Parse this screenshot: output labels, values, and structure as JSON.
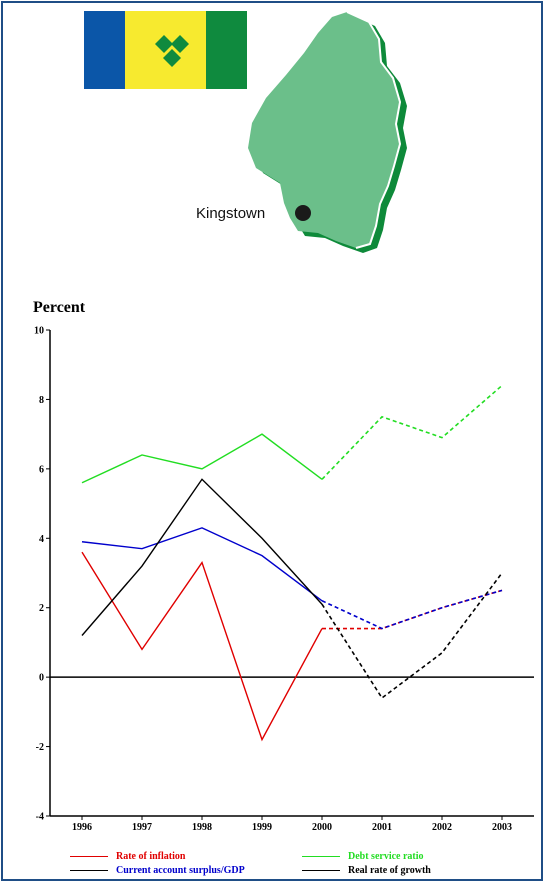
{
  "map": {
    "city_label": "Kingstown"
  },
  "colors": {
    "flag_blue": "#0b56a8",
    "flag_yellow": "#f7ea2f",
    "flag_green": "#0f8a3e",
    "map_fill": "#6bbf8a",
    "map_shadow": "#0e8a3a",
    "frame": "#1f4e86"
  },
  "chart_data": {
    "type": "line",
    "title": "Percent",
    "xlabel": "",
    "ylabel": "Percent",
    "categories": [
      "1996",
      "1997",
      "1998",
      "1999",
      "2000",
      "2001",
      "2002",
      "2003"
    ],
    "ylim": [
      -4,
      10
    ],
    "yticks": [
      -4,
      -2,
      0,
      2,
      4,
      6,
      8,
      10
    ],
    "grid": false,
    "legend": "bottom",
    "solid_until": "2000",
    "dashed_from": "2000",
    "series": [
      {
        "name": "Rate of inflation",
        "color": "#e00000",
        "values": [
          3.6,
          0.8,
          3.3,
          -1.8,
          1.4,
          1.4,
          2.0,
          2.5
        ]
      },
      {
        "name": "Current account surplus/GDP",
        "color": "#0000cc",
        "values": [
          3.9,
          3.7,
          4.3,
          3.5,
          2.2,
          1.4,
          2.0,
          2.5
        ]
      },
      {
        "name": "Debt service ratio",
        "color": "#22dd22",
        "values": [
          5.6,
          6.4,
          6.0,
          7.0,
          5.7,
          7.5,
          6.9,
          8.4
        ]
      },
      {
        "name": "Real rate of growth",
        "color": "#000000",
        "values": [
          1.2,
          3.2,
          5.7,
          4.0,
          2.1,
          -0.6,
          0.7,
          3.0
        ]
      }
    ]
  }
}
